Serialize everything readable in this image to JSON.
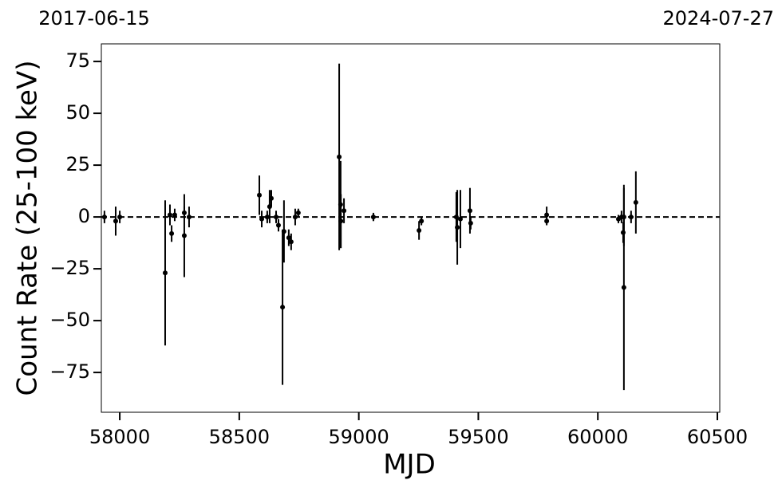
{
  "chart_data": {
    "type": "errorbar",
    "top_labels": [
      "2017-06-15",
      "2024-07-27"
    ],
    "xlabel": "MJD",
    "ylabel": "Count Rate (25-100 keV)",
    "xlim": [
      57923,
      60510
    ],
    "ylim": [
      -94.2,
      83.5
    ],
    "xticks": [
      58000,
      58500,
      59000,
      59500,
      60000,
      60500
    ],
    "yticks": [
      {
        "value": -75,
        "label": "−75"
      },
      {
        "value": -50,
        "label": "−50"
      },
      {
        "value": -25,
        "label": "−25"
      },
      0,
      25,
      50,
      75
    ],
    "reference_line": 0,
    "color": "#000000",
    "series": [
      {
        "x": [
          57936,
          57983,
          58000,
          58190,
          58210,
          58217,
          58230,
          58270,
          58270,
          58290,
          58584,
          58594,
          58617,
          58627,
          58634,
          58654,
          58664,
          58681,
          58687,
          58707,
          58717,
          58734,
          58747,
          58918,
          58924,
          58925,
          58938,
          59061,
          59252,
          59262,
          59408,
          59412,
          59425,
          59465,
          59468,
          59786,
          59786,
          60086,
          60099,
          60106,
          60109,
          60109,
          60139,
          60159
        ],
        "y": [
          0,
          -2,
          0,
          -27,
          1,
          -8,
          1,
          -9,
          2,
          0,
          10.5,
          -1,
          0,
          5,
          9,
          0,
          -4,
          -43.5,
          -7,
          -10,
          -12,
          0,
          2,
          29,
          6,
          -2,
          3,
          0,
          -6.5,
          -2,
          0,
          -5,
          -1,
          3,
          -3,
          1,
          -2,
          -1,
          0,
          -7.5,
          -34,
          0,
          0,
          7
        ],
        "yerr": [
          3,
          7,
          3,
          35,
          5,
          4,
          3,
          20,
          3,
          5,
          9.5,
          4,
          3,
          8,
          4,
          3,
          3,
          37.5,
          15,
          4,
          4,
          4,
          2,
          45,
          21,
          13,
          6,
          2,
          4.5,
          2,
          12,
          18,
          14,
          11,
          3,
          4,
          2,
          2,
          3,
          5,
          49.5,
          14,
          3,
          15
        ]
      }
    ]
  }
}
